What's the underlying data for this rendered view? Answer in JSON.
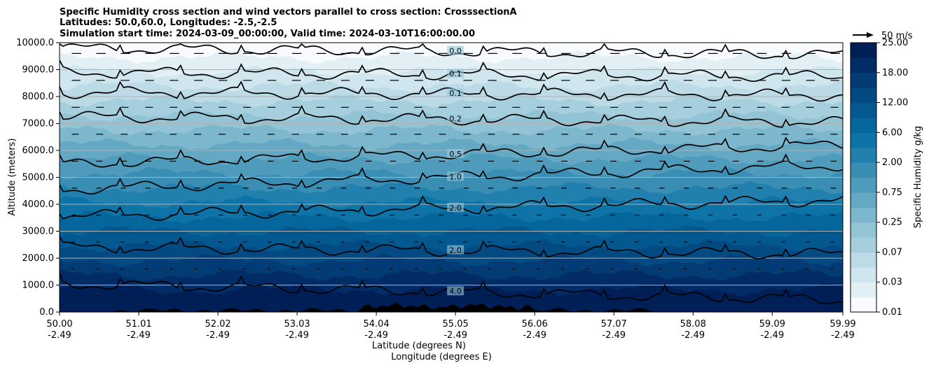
{
  "chart_data": {
    "type": "heatmap",
    "title_lines": [
      "Specific Humidity cross section and wind vectors parallel to cross section: CrosssectionA",
      "Latitudes: 50.0,60.0, Longitudes: -2.5,-2.5",
      "Simulation start time: 2024-03-09_00:00:00, Valid time: 2024-03-10T16:00:00.00"
    ],
    "xlabel_lat": "Latitude (degrees N)",
    "xlabel_lon": "Longitude (degrees E)",
    "ylabel": "Altitude (meters)",
    "colorbar_label": "Specific Humidity g/kg",
    "quiver_key": "50 m/s",
    "xlim": [
      50.0,
      59.99
    ],
    "ylim": [
      0,
      10000
    ],
    "x_ticks": [
      {
        "lat": "50.00",
        "lon": "-2.49"
      },
      {
        "lat": "51.01",
        "lon": "-2.49"
      },
      {
        "lat": "52.02",
        "lon": "-2.49"
      },
      {
        "lat": "53.03",
        "lon": "-2.49"
      },
      {
        "lat": "54.04",
        "lon": "-2.49"
      },
      {
        "lat": "55.05",
        "lon": "-2.49"
      },
      {
        "lat": "56.06",
        "lon": "-2.49"
      },
      {
        "lat": "57.07",
        "lon": "-2.49"
      },
      {
        "lat": "58.08",
        "lon": "-2.49"
      },
      {
        "lat": "59.09",
        "lon": "-2.49"
      },
      {
        "lat": "59.99",
        "lon": "-2.49"
      }
    ],
    "y_ticks": [
      "0.0",
      "1000.0",
      "2000.0",
      "3000.0",
      "4000.0",
      "5000.0",
      "6000.0",
      "7000.0",
      "8000.0",
      "9000.0",
      "10000.0"
    ],
    "y_tick_values": [
      0,
      1000,
      2000,
      3000,
      4000,
      5000,
      6000,
      7000,
      8000,
      9000,
      10000
    ],
    "colorbar_ticks": [
      "0.01",
      "0.03",
      "0.07",
      "0.25",
      "0.75",
      "2.00",
      "6.00",
      "12.00",
      "18.00",
      "25.00"
    ],
    "contour_levels": [
      0.01,
      0.02,
      0.03,
      0.05,
      0.07,
      0.1,
      0.25,
      0.5,
      0.75,
      1.0,
      2.0,
      4.0,
      6.0,
      8.0,
      12.0,
      15.0,
      18.0,
      25.0
    ],
    "level_colors": [
      "#f7fbfd",
      "#e2eff4",
      "#d0e6ee",
      "#bcdbe6",
      "#a6cfde",
      "#93c4d6",
      "#7db7cd",
      "#64a8c4",
      "#4e9bbc",
      "#3a8eb4",
      "#2180ad",
      "#0e73a6",
      "#05669c",
      "#03588f",
      "#034a82",
      "#033c74",
      "#022c66",
      "#011f57"
    ],
    "contour_lines": [
      {
        "label": "0.0",
        "alt_start": 9800,
        "alt_end": 9550
      },
      {
        "label": "0.1",
        "alt_start": 8900,
        "alt_end": 8750
      },
      {
        "label": "0.1",
        "alt_start": 8150,
        "alt_end": 8050
      },
      {
        "label": "0.2",
        "alt_start": 7250,
        "alt_end": 7050
      },
      {
        "label": "0.5",
        "alt_start": 5500,
        "alt_end": 6200
      },
      {
        "label": "1.0",
        "alt_start": 4550,
        "alt_end": 5450
      },
      {
        "label": "2.0",
        "alt_start": 3550,
        "alt_end": 4150
      },
      {
        "label": "2.0",
        "alt_start": 2400,
        "alt_end": 2150
      },
      {
        "label": "4.0",
        "alt_start": 1050,
        "alt_end": 450
      }
    ],
    "terrain_note": "black terrain profile along bottom, peaks near 55.05 N"
  }
}
